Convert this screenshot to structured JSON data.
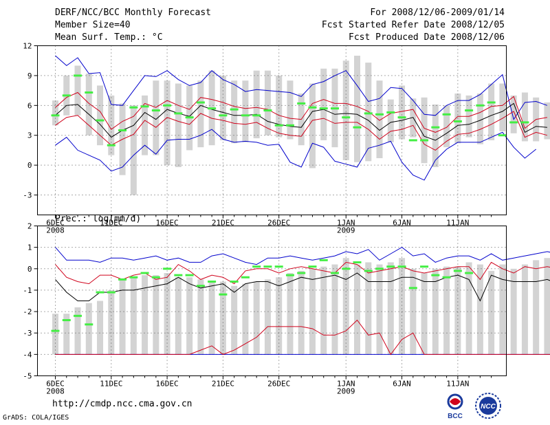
{
  "header": {
    "title": "DERF/NCC/BCC Monthly Forecast",
    "member_size": "Member Size=40",
    "variable": "Mean Surf. Temp.: °C",
    "period": "For 2008/12/06-2009/01/14",
    "start_date": "Fcst Started Refer Date 2008/12/05",
    "produced_date": "Fcst Produced Date 2008/12/06"
  },
  "footer": {
    "url": "http://cmdp.ncc.cma.gov.cn",
    "grads": "GrADS: COLA/IGES",
    "logo_left_text": "BCC",
    "logo_right_text": "NCC"
  },
  "colors": {
    "box": "#d3d3d3",
    "mean": "#000000",
    "spread": "#d0021b",
    "extreme": "#0000cc",
    "marker": "#44ee44",
    "grid": "#555555"
  },
  "chart_data": [
    {
      "type": "box",
      "title": "Mean Surf. Temp.: °C",
      "ylim": [
        -5,
        12
      ],
      "yticks": [
        -3,
        0,
        3,
        6,
        9,
        12
      ],
      "grid": true,
      "x_tick_labels": [
        {
          "day": 1,
          "label": "6DEC",
          "sub": "2008"
        },
        {
          "day": 6,
          "label": "11DEC"
        },
        {
          "day": 11,
          "label": "16DEC"
        },
        {
          "day": 16,
          "label": "21DEC"
        },
        {
          "day": 21,
          "label": "26DEC"
        },
        {
          "day": 27,
          "label": "1JAN",
          "sub": "2009"
        },
        {
          "day": 32,
          "label": "6JAN"
        },
        {
          "day": 37,
          "label": "11JAN"
        }
      ],
      "series": [
        {
          "name": "box_low",
          "values": [
            4,
            5,
            5,
            3,
            2,
            1,
            -1,
            -3,
            1,
            1,
            0,
            -0.2,
            1.5,
            1.8,
            2,
            2.5,
            2.2,
            2.3,
            2.7,
            3,
            2.8,
            2.6,
            2,
            -0.3,
            2.5,
            1.8,
            0.5,
            0.3,
            0.4,
            0.7,
            2.3,
            2.6,
            2.8,
            0.2,
            -0.2,
            1.8,
            2.2,
            2.8,
            2.1,
            2.5,
            3.4,
            3.2,
            2.4,
            2.4,
            2.6,
            2.8
          ]
        },
        {
          "name": "box_high",
          "values": [
            6.5,
            9,
            10,
            9.2,
            8,
            7,
            6.2,
            6,
            7,
            8.5,
            8.5,
            8.2,
            8,
            8.5,
            9.5,
            9,
            8.5,
            8.5,
            9.5,
            9.5,
            9,
            8.5,
            7.2,
            8.2,
            9.7,
            9.7,
            10.5,
            11,
            10.3,
            8.5,
            6.6,
            8,
            6.7,
            6.8,
            6.1,
            6,
            7.2,
            7,
            7.2,
            8.2,
            8.2,
            7,
            7.3,
            6.8,
            6.3
          ]
        },
        {
          "name": "ensemble_max",
          "values": [
            11,
            10,
            10.8,
            9.2,
            9.3,
            6.1,
            6,
            7.5,
            9,
            8.9,
            9.5,
            8.6,
            8,
            8.3,
            9.5,
            8.6,
            8.1,
            7.4,
            7.6,
            7.5,
            7.4,
            7.3,
            6.9,
            8.1,
            8.4,
            9,
            9.5,
            8,
            6.4,
            6.7,
            7.8,
            7.7,
            6.5,
            5.1,
            5,
            6,
            6.5,
            6.5,
            7.1,
            8.1,
            9.1,
            4.6,
            6.3,
            6.4,
            6
          ]
        },
        {
          "name": "mean_plus_sd",
          "values": [
            5.8,
            6.8,
            7.3,
            6.2,
            5.4,
            3.6,
            4.4,
            4.9,
            6.2,
            5.8,
            6.5,
            6,
            5.6,
            6.8,
            6.6,
            6.3,
            5.9,
            5.7,
            5.8,
            5.6,
            5,
            4.7,
            4.6,
            6.2,
            6.6,
            6.2,
            6.2,
            5.9,
            5.4,
            4.5,
            5.2,
            5.4,
            5.6,
            3.7,
            3.3,
            3.8,
            4.9,
            4.9,
            5.3,
            5.9,
            6,
            6.9,
            3.7,
            4.6,
            4.8
          ]
        },
        {
          "name": "ensemble_mean",
          "values": [
            5,
            6,
            6.1,
            5.1,
            4.1,
            2.8,
            3.5,
            4,
            5.3,
            4.6,
            5.6,
            5.2,
            4.9,
            6,
            5.6,
            5.3,
            5,
            5,
            5.1,
            4.4,
            4.1,
            3.9,
            3.8,
            5.4,
            5.6,
            5.1,
            5.2,
            5.1,
            4.5,
            3.5,
            4.3,
            4.5,
            4.8,
            2.9,
            2.5,
            3.2,
            4,
            4.1,
            4.5,
            5,
            5.4,
            6.2,
            3.3,
            3.9,
            3.8
          ]
        },
        {
          "name": "mean_minus_sd",
          "values": [
            4,
            4.8,
            5,
            4,
            3,
            2,
            2.6,
            3.1,
            4.5,
            3.8,
            4.8,
            4.4,
            4.1,
            5.2,
            4.7,
            4.5,
            4.2,
            4.1,
            4.3,
            3.7,
            3.2,
            3,
            2.9,
            4.5,
            4.7,
            4.2,
            4.3,
            4.3,
            3.6,
            2.6,
            3.4,
            3.6,
            4,
            2.1,
            1.5,
            2.4,
            3.1,
            3.2,
            3.6,
            4.1,
            4.7,
            5.4,
            2.8,
            3.3,
            3
          ]
        },
        {
          "name": "ensemble_min",
          "values": [
            2,
            2.8,
            1.5,
            1,
            0.5,
            -0.6,
            -0.2,
            1,
            2,
            1.1,
            2.5,
            2.6,
            2.6,
            3,
            3.6,
            2.6,
            2.3,
            2.4,
            2.3,
            2,
            2.1,
            0.3,
            -0.2,
            2.2,
            1.8,
            0.4,
            0.1,
            -0.2,
            1.7,
            2,
            2.4,
            0.3,
            -1,
            -1.5,
            0.5,
            1.6,
            2.3,
            2.3,
            2.3,
            2.8,
            3.3,
            1.8,
            0.7,
            1.6
          ]
        },
        {
          "name": "marker",
          "values": [
            5,
            7,
            9,
            7.3,
            4.5,
            2,
            3.5,
            5.8,
            5.9,
            5.5,
            6,
            5.2,
            4.8,
            6.3,
            5.7,
            5,
            5.6,
            5,
            5,
            5.5,
            4,
            4,
            6.2,
            5.8,
            5.7,
            5.7,
            4.8,
            3.8,
            5.2,
            5.1,
            5.3,
            4.8,
            2.5,
            2.5,
            3.8,
            5.1,
            4.4,
            5.5,
            6,
            6.3,
            3,
            4.3,
            4.3
          ]
        }
      ]
    },
    {
      "type": "box",
      "title": "Prec.: log(mm/d)",
      "ylim": [
        -5,
        2
      ],
      "yticks": [
        -5,
        -4,
        -3,
        -2,
        -1,
        0,
        1,
        2
      ],
      "grid": true,
      "x_tick_labels": [
        {
          "day": 1,
          "label": "6DEC",
          "sub": "2008"
        },
        {
          "day": 6,
          "label": "11DEC"
        },
        {
          "day": 11,
          "label": "16DEC"
        },
        {
          "day": 16,
          "label": "21DEC"
        },
        {
          "day": 21,
          "label": "26DEC"
        },
        {
          "day": 27,
          "label": "1JAN",
          "sub": "2009"
        },
        {
          "day": 32,
          "label": "6JAN"
        },
        {
          "day": 37,
          "label": "11JAN"
        }
      ],
      "series": [
        {
          "name": "box_low",
          "values": [
            -4,
            -4,
            -4,
            -4,
            -4,
            -4,
            -4,
            -4,
            -4,
            -4,
            -4,
            -4,
            -4,
            -4,
            -4,
            -4,
            -4,
            -4,
            -4,
            -4,
            -4,
            -4,
            -4,
            -4,
            -4,
            -4,
            -4,
            -4,
            -4,
            -4,
            -4,
            -4,
            -4,
            -4,
            -4,
            -4,
            -4,
            -4,
            -4,
            -4,
            -4,
            -4,
            -4,
            -4,
            -4
          ]
        },
        {
          "name": "box_high",
          "values": [
            -2.1,
            -2.1,
            -1.8,
            -1.6,
            -1.5,
            -1,
            -0.5,
            -0.4,
            -0.3,
            -0.3,
            -0.2,
            -0.4,
            -0.4,
            -0.5,
            -0.6,
            -0.6,
            -0.8,
            -0.7,
            -0.6,
            -0.5,
            -0.4,
            -0.2,
            -0.1,
            0,
            0.1,
            0.2,
            0.5,
            0.2,
            0.3,
            0.2,
            0.3,
            0.5,
            0,
            -0.2,
            0,
            0.1,
            0.1,
            0.3,
            0.2,
            -0.1,
            0.2,
            0,
            0.2,
            0.4,
            0.5
          ]
        },
        {
          "name": "ensemble_max",
          "values": [
            1,
            0.4,
            0.4,
            0.4,
            0.3,
            0.5,
            0.5,
            0.4,
            0.5,
            0.6,
            0.4,
            0.5,
            0.3,
            0.3,
            0.6,
            0.7,
            0.5,
            0.3,
            0.2,
            0.5,
            0.5,
            0.6,
            0.5,
            0.4,
            0.5,
            0.6,
            0.8,
            0.7,
            0.9,
            0.4,
            0.7,
            1,
            0.6,
            0.7,
            0.3,
            0.5,
            0.6,
            0.6,
            0.4,
            0.7,
            0.4,
            0.5,
            0.6,
            0.7,
            0.8,
            0.7
          ]
        },
        {
          "name": "mean_plus_sd",
          "values": [
            0.2,
            -0.4,
            -0.6,
            -0.7,
            -0.3,
            -0.3,
            -0.5,
            -0.3,
            -0.2,
            -0.5,
            -0.4,
            0.2,
            -0.1,
            -0.5,
            -0.3,
            -0.4,
            -0.7,
            -0.1,
            0,
            0,
            -0.2,
            0,
            0.1,
            0,
            -0.1,
            -0.2,
            0.3,
            0.2,
            -0.2,
            -0.1,
            0,
            0.1,
            -0.1,
            -0.2,
            -0.1,
            0,
            0.1,
            0.1,
            -0.5,
            0.3,
            0,
            -0.2,
            0.1,
            0,
            0.1,
            0
          ]
        },
        {
          "name": "ensemble_mean",
          "values": [
            -0.5,
            -1.1,
            -1.5,
            -1.5,
            -1.1,
            -1.1,
            -1,
            -1,
            -0.9,
            -0.8,
            -0.7,
            -0.4,
            -0.7,
            -0.9,
            -0.8,
            -0.7,
            -1.1,
            -0.7,
            -0.6,
            -0.6,
            -0.8,
            -0.6,
            -0.4,
            -0.5,
            -0.4,
            -0.3,
            -0.5,
            -0.2,
            -0.6,
            -0.6,
            -0.6,
            -0.4,
            -0.4,
            -0.6,
            -0.6,
            -0.4,
            -0.3,
            -0.5,
            -1.5,
            -0.3,
            -0.5,
            -0.6,
            -0.6,
            -0.6,
            -0.5,
            -0.7
          ]
        },
        {
          "name": "mean_minus_sd",
          "values": [
            -4,
            -4,
            -4,
            -4,
            -4,
            -4,
            -4,
            -4,
            -4,
            -4,
            -4,
            -4,
            -4,
            -3.8,
            -3.6,
            -4,
            -3.8,
            -3.5,
            -3.2,
            -2.7,
            -2.7,
            -2.7,
            -2.7,
            -2.8,
            -3.1,
            -3.1,
            -2.9,
            -2.4,
            -3.1,
            -3,
            -4,
            -3.3,
            -3,
            -4,
            -4,
            -4,
            -4,
            -4,
            -4,
            -4,
            -4,
            -4,
            -4,
            -4,
            -4,
            -4
          ]
        },
        {
          "name": "ensemble_min",
          "values": [
            -4,
            -4,
            -4,
            -4,
            -4,
            -4,
            -4,
            -4,
            -4,
            -4,
            -4,
            -4,
            -4,
            -4,
            -4,
            -4,
            -4,
            -4,
            -4,
            -4,
            -4,
            -4,
            -4,
            -4,
            -4,
            -4,
            -4,
            -4,
            -4,
            -4,
            -4,
            -4,
            -4,
            -4,
            -4,
            -4,
            -4,
            -4,
            -4,
            -4,
            -4,
            -4,
            -4,
            -4,
            -4,
            -4
          ]
        },
        {
          "name": "marker",
          "values": [
            -2.9,
            -2.4,
            -2.2,
            -2.6,
            -1.1,
            -1.1,
            -0.5,
            -0.4,
            -0.2,
            -0.4,
            0,
            -0.3,
            -0.3,
            -0.8,
            -0.6,
            -1.2,
            -0.6,
            -0.4,
            0.1,
            0.1,
            0.1,
            -0.3,
            -0.2,
            0.1,
            0.4,
            -0.2,
            0,
            0.3,
            -0.1,
            0,
            0.1,
            0.1,
            -0.9,
            0.1,
            -0.3,
            -0.4,
            -0.1,
            -0.2
          ]
        }
      ]
    }
  ]
}
